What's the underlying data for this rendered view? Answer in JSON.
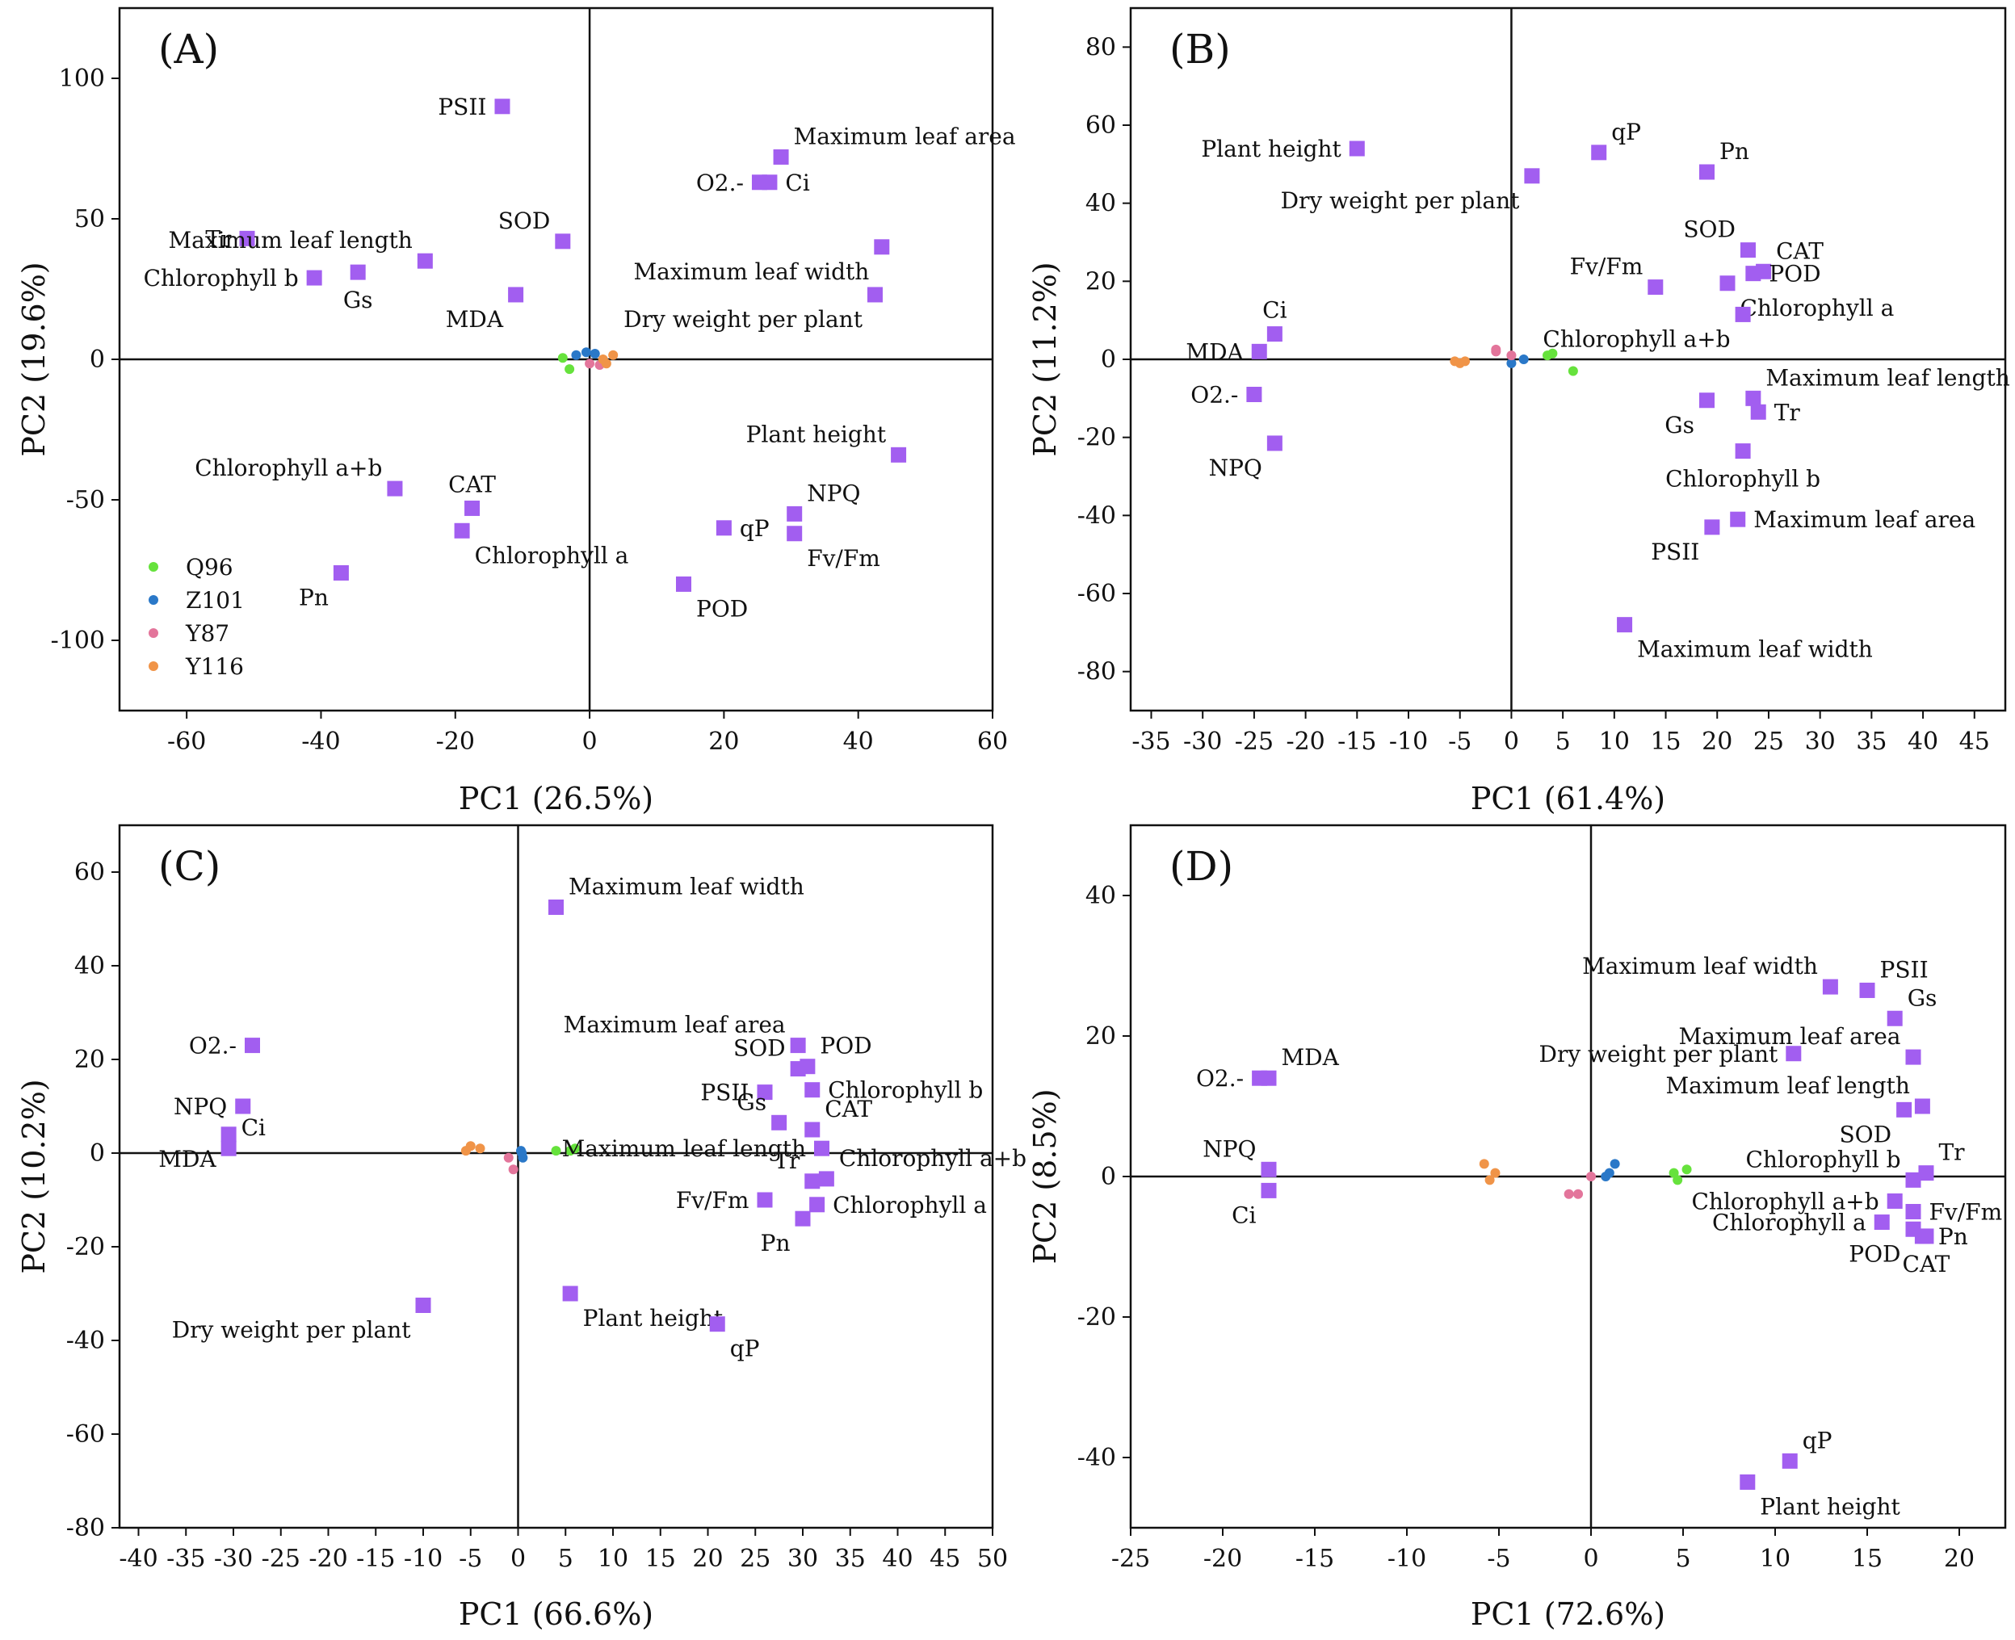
{
  "chart_data": [
    {
      "panel": "(A)",
      "type": "scatter",
      "xlabel": "PC1 (26.5%)",
      "ylabel": "PC2 (19.6%)",
      "xlim": [
        -70,
        60
      ],
      "ylim": [
        -125,
        125
      ],
      "xticks": [
        -60,
        -40,
        -20,
        0,
        20,
        40,
        60
      ],
      "yticks": [
        -100,
        -50,
        0,
        50,
        100
      ],
      "loadings": [
        {
          "name": "PSII",
          "x": -13,
          "y": 90,
          "label_pos": "left"
        },
        {
          "name": "Maximum leaf area",
          "x": 28.5,
          "y": 72,
          "label_pos": "upper-right"
        },
        {
          "name": "O2.-",
          "x": 25.3,
          "y": 63,
          "label_pos": "left"
        },
        {
          "name": "Ci",
          "x": 26.8,
          "y": 63,
          "label_pos": "right"
        },
        {
          "name": "Tr",
          "x": -51,
          "y": 43,
          "label_pos": "left"
        },
        {
          "name": "SOD",
          "x": -4,
          "y": 42,
          "label_pos": "upper-left"
        },
        {
          "name": "Maximum leaf length",
          "x": -24.5,
          "y": 35,
          "label_pos": "upper-left"
        },
        {
          "name": "Chlorophyll b",
          "x": -41,
          "y": 29,
          "label_pos": "left"
        },
        {
          "name": "Gs",
          "x": -34.5,
          "y": 31,
          "label_pos": "below"
        },
        {
          "name": "MDA",
          "x": -11,
          "y": 23,
          "label_pos": "below-left"
        },
        {
          "name": "Maximum leaf width",
          "x": 43.5,
          "y": 40,
          "label_pos": "below-left"
        },
        {
          "name": "Dry weight per plant",
          "x": 42.5,
          "y": 23,
          "label_pos": "below-left"
        },
        {
          "name": "Plant height",
          "x": 46,
          "y": -34,
          "label_pos": "upper-left"
        },
        {
          "name": "Chlorophyll a+b",
          "x": -29,
          "y": -46,
          "label_pos": "upper-left"
        },
        {
          "name": "CAT",
          "x": -17.5,
          "y": -53,
          "label_pos": "above"
        },
        {
          "name": "Chlorophyll a",
          "x": -19,
          "y": -61,
          "label_pos": "below-right"
        },
        {
          "name": "Pn",
          "x": -37,
          "y": -76,
          "label_pos": "below-left"
        },
        {
          "name": "NPQ",
          "x": 30.5,
          "y": -55,
          "label_pos": "upper-right"
        },
        {
          "name": "qP",
          "x": 20,
          "y": -60,
          "label_pos": "right"
        },
        {
          "name": "Fv/Fm",
          "x": 30.5,
          "y": -62,
          "label_pos": "below-right"
        },
        {
          "name": "POD",
          "x": 14,
          "y": -80,
          "label_pos": "below-right"
        }
      ],
      "scores": [
        {
          "group": "Q96",
          "points": [
            [
              -4,
              0.5
            ],
            [
              -3,
              -3.5
            ]
          ]
        },
        {
          "group": "Z101",
          "points": [
            [
              -2,
              1.5
            ],
            [
              -0.5,
              2.5
            ],
            [
              0.8,
              2
            ]
          ]
        },
        {
          "group": "Y87",
          "points": [
            [
              0,
              -1.5
            ],
            [
              1.5,
              -2
            ]
          ]
        },
        {
          "group": "Y116",
          "points": [
            [
              2.5,
              -1.5
            ],
            [
              3.5,
              1.5
            ],
            [
              2,
              0
            ]
          ]
        }
      ],
      "legend": {
        "placement": "lower-left",
        "entries": [
          {
            "name": "Q96",
            "color": "#66e23c"
          },
          {
            "name": "Z101",
            "color": "#2a78c8"
          },
          {
            "name": "Y87",
            "color": "#e3759b"
          },
          {
            "name": "Y116",
            "color": "#f09448"
          }
        ]
      }
    },
    {
      "panel": "(B)",
      "type": "scatter",
      "xlabel": "PC1 (61.4%)",
      "ylabel": "PC2 (11.2%)",
      "xlim": [
        -37,
        48
      ],
      "ylim": [
        -90,
        90
      ],
      "xticks": [
        -35,
        -30,
        -25,
        -20,
        -15,
        -10,
        -5,
        0,
        5,
        10,
        15,
        20,
        25,
        30,
        35,
        40,
        45
      ],
      "yticks": [
        -80,
        -60,
        -40,
        -20,
        0,
        20,
        40,
        60,
        80
      ],
      "loadings": [
        {
          "name": "Plant height",
          "x": -15,
          "y": 54,
          "label_pos": "left"
        },
        {
          "name": "Dry weight per plant",
          "x": 2,
          "y": 47,
          "label_pos": "below-left"
        },
        {
          "name": "qP",
          "x": 8.5,
          "y": 53,
          "label_pos": "upper-right"
        },
        {
          "name": "Pn",
          "x": 19,
          "y": 48,
          "label_pos": "upper-right"
        },
        {
          "name": "SOD",
          "x": 23,
          "y": 28,
          "label_pos": "upper-left"
        },
        {
          "name": "CAT",
          "x": 24.5,
          "y": 22.5,
          "label_pos": "upper-right"
        },
        {
          "name": "POD",
          "x": 23.5,
          "y": 22,
          "label_pos": "right"
        },
        {
          "name": "Fv/Fm",
          "x": 14,
          "y": 18.5,
          "label_pos": "upper-left"
        },
        {
          "name": "Chlorophyll a",
          "x": 21,
          "y": 19.5,
          "label_pos": "below-right"
        },
        {
          "name": "Chlorophyll a+b",
          "x": 22.5,
          "y": 11.5,
          "label_pos": "below-left"
        },
        {
          "name": "Ci",
          "x": -23,
          "y": 6.5,
          "label_pos": "above"
        },
        {
          "name": "MDA",
          "x": -24.5,
          "y": 2,
          "label_pos": "left"
        },
        {
          "name": "O2.-",
          "x": -25,
          "y": -9,
          "label_pos": "left"
        },
        {
          "name": "NPQ",
          "x": -23,
          "y": -21.5,
          "label_pos": "below-left"
        },
        {
          "name": "Maximum leaf length",
          "x": 23.5,
          "y": -10,
          "label_pos": "upper-right"
        },
        {
          "name": "Gs",
          "x": 19,
          "y": -10.5,
          "label_pos": "below-left"
        },
        {
          "name": "Tr",
          "x": 24,
          "y": -13.5,
          "label_pos": "right"
        },
        {
          "name": "Chlorophyll b",
          "x": 22.5,
          "y": -23.5,
          "label_pos": "below"
        },
        {
          "name": "Maximum leaf area",
          "x": 22,
          "y": -41,
          "label_pos": "right"
        },
        {
          "name": "PSII",
          "x": 19.5,
          "y": -43,
          "label_pos": "below-left"
        },
        {
          "name": "Maximum leaf width",
          "x": 11,
          "y": -68,
          "label_pos": "below-right"
        }
      ],
      "scores": [
        {
          "group": "Q96",
          "points": [
            [
              3.5,
              1
            ],
            [
              4,
              1.5
            ],
            [
              6,
              -3
            ]
          ]
        },
        {
          "group": "Z101",
          "points": [
            [
              0,
              -1
            ],
            [
              1.2,
              0
            ]
          ]
        },
        {
          "group": "Y87",
          "points": [
            [
              -1.5,
              2.5
            ],
            [
              -1.5,
              2
            ],
            [
              0,
              1
            ]
          ]
        },
        {
          "group": "Y116",
          "points": [
            [
              -5,
              -1
            ],
            [
              -4.5,
              -0.5
            ],
            [
              -5.5,
              -0.5
            ]
          ]
        }
      ]
    },
    {
      "panel": "(C)",
      "type": "scatter",
      "xlabel": "PC1 (66.6%)",
      "ylabel": "PC2 (10.2%)",
      "xlim": [
        -42,
        50
      ],
      "ylim": [
        -80,
        70
      ],
      "xticks": [
        -40,
        -35,
        -30,
        -25,
        -20,
        -15,
        -10,
        -5,
        0,
        5,
        10,
        15,
        20,
        25,
        30,
        35,
        40,
        45,
        50
      ],
      "yticks": [
        -80,
        -60,
        -40,
        -20,
        0,
        20,
        40,
        60
      ],
      "loadings": [
        {
          "name": "Maximum leaf width",
          "x": 4,
          "y": 52.5,
          "label_pos": "upper-right"
        },
        {
          "name": "O2.-",
          "x": -28,
          "y": 23,
          "label_pos": "left"
        },
        {
          "name": "NPQ",
          "x": -29,
          "y": 10,
          "label_pos": "left"
        },
        {
          "name": "MDA",
          "x": -30.5,
          "y": 4,
          "label_pos": "below-left"
        },
        {
          "name": "Ci",
          "x": -30.5,
          "y": 1,
          "label_pos": "upper-right"
        },
        {
          "name": "Maximum leaf area",
          "x": 29.5,
          "y": 23,
          "label_pos": "upper-left"
        },
        {
          "name": "SOD",
          "x": 29.5,
          "y": 18,
          "label_pos": "upper-left"
        },
        {
          "name": "POD",
          "x": 30.5,
          "y": 18.5,
          "label_pos": "upper-right"
        },
        {
          "name": "PSII",
          "x": 26,
          "y": 13,
          "label_pos": "left"
        },
        {
          "name": "Chlorophyll b",
          "x": 31,
          "y": 13.5,
          "label_pos": "right"
        },
        {
          "name": "Gs",
          "x": 27.5,
          "y": 6.5,
          "label_pos": "upper-left"
        },
        {
          "name": "CAT",
          "x": 31,
          "y": 5,
          "label_pos": "upper-right"
        },
        {
          "name": "Maximum leaf length",
          "x": 32,
          "y": 1,
          "label_pos": "left"
        },
        {
          "name": "Tr",
          "x": 31,
          "y": -6,
          "label_pos": "upper-left"
        },
        {
          "name": "Chlorophyll a+b",
          "x": 32.5,
          "y": -5.5,
          "label_pos": "upper-right"
        },
        {
          "name": "Fv/Fm",
          "x": 26,
          "y": -10,
          "label_pos": "left"
        },
        {
          "name": "Chlorophyll a",
          "x": 31.5,
          "y": -11,
          "label_pos": "right"
        },
        {
          "name": "Pn",
          "x": 30,
          "y": -14,
          "label_pos": "below-left"
        },
        {
          "name": "Dry weight per plant",
          "x": -10,
          "y": -32.5,
          "label_pos": "below-left"
        },
        {
          "name": "Plant height",
          "x": 5.5,
          "y": -30,
          "label_pos": "below-right"
        },
        {
          "name": "qP",
          "x": 21,
          "y": -36.5,
          "label_pos": "below-right"
        }
      ],
      "scores": [
        {
          "group": "Q96",
          "points": [
            [
              4,
              0.5
            ],
            [
              5.5,
              0.5
            ],
            [
              6,
              1
            ]
          ]
        },
        {
          "group": "Z101",
          "points": [
            [
              0.3,
              0.5
            ],
            [
              0.5,
              -1
            ],
            [
              0.4,
              0
            ]
          ]
        },
        {
          "group": "Y87",
          "points": [
            [
              -1,
              -1
            ],
            [
              -0.5,
              -3.5
            ]
          ]
        },
        {
          "group": "Y116",
          "points": [
            [
              -5.5,
              0.5
            ],
            [
              -5,
              1.5
            ],
            [
              -4,
              1
            ]
          ]
        }
      ]
    },
    {
      "panel": "(D)",
      "type": "scatter",
      "xlabel": "PC1 (72.6%)",
      "ylabel": "PC2 (8.5%)",
      "xlim": [
        -25,
        22.5
      ],
      "ylim": [
        -50,
        50
      ],
      "xticks": [
        -25,
        -20,
        -15,
        -10,
        -5,
        0,
        5,
        10,
        15,
        20
      ],
      "yticks": [
        -40,
        -20,
        0,
        20,
        40
      ],
      "loadings": [
        {
          "name": "Maximum leaf width",
          "x": 13,
          "y": 27,
          "label_pos": "upper-left"
        },
        {
          "name": "PSII",
          "x": 15,
          "y": 26.5,
          "label_pos": "upper-right"
        },
        {
          "name": "Gs",
          "x": 16.5,
          "y": 22.5,
          "label_pos": "upper-right"
        },
        {
          "name": "Maximum leaf area",
          "x": 17.5,
          "y": 17,
          "label_pos": "upper-left"
        },
        {
          "name": "Dry weight per plant",
          "x": 11,
          "y": 17.5,
          "label_pos": "left"
        },
        {
          "name": "O2.-",
          "x": -18,
          "y": 14,
          "label_pos": "left"
        },
        {
          "name": "MDA",
          "x": -17.5,
          "y": 14,
          "label_pos": "upper-right"
        },
        {
          "name": "Maximum leaf length",
          "x": 18,
          "y": 10,
          "label_pos": "upper-left"
        },
        {
          "name": "SOD",
          "x": 17,
          "y": 9.5,
          "label_pos": "below-left"
        },
        {
          "name": "NPQ",
          "x": -17.5,
          "y": 1,
          "label_pos": "upper-left"
        },
        {
          "name": "Ci",
          "x": -17.5,
          "y": -2,
          "label_pos": "below-left"
        },
        {
          "name": "Chlorophyll b",
          "x": 17.5,
          "y": -0.5,
          "label_pos": "upper-left"
        },
        {
          "name": "Tr",
          "x": 18.2,
          "y": 0.5,
          "label_pos": "upper-right"
        },
        {
          "name": "Chlorophyll a+b",
          "x": 16.5,
          "y": -3.5,
          "label_pos": "left"
        },
        {
          "name": "Fv/Fm",
          "x": 17.5,
          "y": -5,
          "label_pos": "right"
        },
        {
          "name": "Chlorophyll a",
          "x": 15.8,
          "y": -6.5,
          "label_pos": "left"
        },
        {
          "name": "Pn",
          "x": 18,
          "y": -8.5,
          "label_pos": "right"
        },
        {
          "name": "POD",
          "x": 17.5,
          "y": -7.5,
          "label_pos": "below-left"
        },
        {
          "name": "CAT",
          "x": 18.2,
          "y": -8.5,
          "label_pos": "below"
        },
        {
          "name": "qP",
          "x": 10.8,
          "y": -40.5,
          "label_pos": "upper-right"
        },
        {
          "name": "Plant height",
          "x": 8.5,
          "y": -43.5,
          "label_pos": "below-right"
        }
      ],
      "scores": [
        {
          "group": "Q96",
          "points": [
            [
              4.5,
              0.5
            ],
            [
              4.7,
              -0.5
            ],
            [
              5.2,
              1
            ]
          ]
        },
        {
          "group": "Z101",
          "points": [
            [
              0.8,
              0
            ],
            [
              1,
              0.5
            ],
            [
              1.3,
              1.8
            ]
          ]
        },
        {
          "group": "Y87",
          "points": [
            [
              0,
              0
            ],
            [
              -0.7,
              -2.5
            ],
            [
              -1.2,
              -2.5
            ]
          ]
        },
        {
          "group": "Y116",
          "points": [
            [
              -5.2,
              0.5
            ],
            [
              -5.5,
              -0.5
            ],
            [
              -5.8,
              1.8
            ]
          ]
        }
      ]
    }
  ],
  "colors": {
    "loading": "#a25ef0",
    "Q96": "#66e23c",
    "Z101": "#2a78c8",
    "Y87": "#e3759b",
    "Y116": "#f09448"
  }
}
